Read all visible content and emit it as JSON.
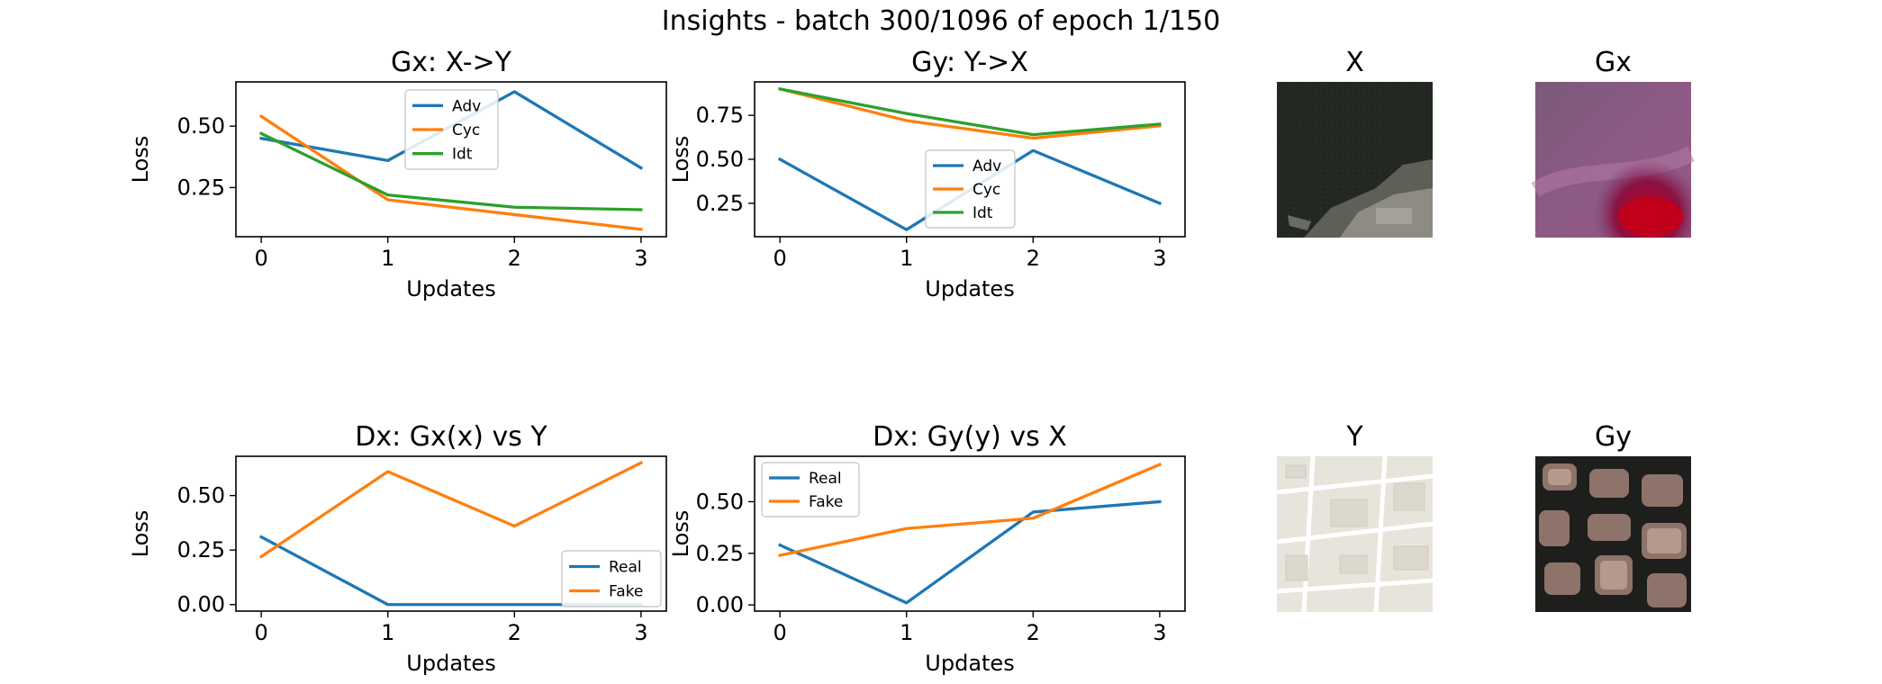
{
  "figure": {
    "title": "Insights - batch 300/1096 of epoch 1/150"
  },
  "colors": {
    "blue": "#1f77b4",
    "orange": "#ff7f0e",
    "green": "#2ca02c"
  },
  "chart_data": [
    {
      "type": "line",
      "title": "Gx: X->Y",
      "xlabel": "Updates",
      "ylabel": "Loss",
      "x": [
        0,
        1,
        2,
        3
      ],
      "xlim": [
        -0.2,
        3.2
      ],
      "ylim": [
        0.05,
        0.68
      ],
      "yticks": [
        0.25,
        0.5
      ],
      "ytick_labels": [
        "0.25",
        "0.50"
      ],
      "legend": "top-center",
      "series": [
        {
          "name": "Adv",
          "color": "#1f77b4",
          "values": [
            0.45,
            0.36,
            0.64,
            0.33
          ]
        },
        {
          "name": "Cyc",
          "color": "#ff7f0e",
          "values": [
            0.54,
            0.2,
            0.14,
            0.08
          ]
        },
        {
          "name": "Idt",
          "color": "#2ca02c",
          "values": [
            0.47,
            0.22,
            0.17,
            0.16
          ]
        }
      ]
    },
    {
      "type": "line",
      "title": "Gy: Y->X",
      "xlabel": "Updates",
      "ylabel": "Loss",
      "x": [
        0,
        1,
        2,
        3
      ],
      "xlim": [
        -0.2,
        3.2
      ],
      "ylim": [
        0.06,
        0.94
      ],
      "yticks": [
        0.25,
        0.5,
        0.75
      ],
      "ytick_labels": [
        "0.25",
        "0.50",
        "0.75"
      ],
      "legend": "lower-center",
      "series": [
        {
          "name": "Adv",
          "color": "#1f77b4",
          "values": [
            0.5,
            0.1,
            0.55,
            0.25
          ]
        },
        {
          "name": "Cyc",
          "color": "#ff7f0e",
          "values": [
            0.9,
            0.72,
            0.62,
            0.69
          ]
        },
        {
          "name": "Idt",
          "color": "#2ca02c",
          "values": [
            0.9,
            0.76,
            0.64,
            0.7
          ]
        }
      ]
    },
    {
      "type": "line",
      "title": "Dx: Gx(x) vs Y",
      "xlabel": "Updates",
      "ylabel": "Loss",
      "x": [
        0,
        1,
        2,
        3
      ],
      "xlim": [
        -0.2,
        3.2
      ],
      "ylim": [
        -0.03,
        0.68
      ],
      "yticks": [
        0.0,
        0.25,
        0.5
      ],
      "ytick_labels": [
        "0.00",
        "0.25",
        "0.50"
      ],
      "legend": "lower-right",
      "series": [
        {
          "name": "Real",
          "color": "#1f77b4",
          "values": [
            0.31,
            0.0,
            0.0,
            0.0
          ]
        },
        {
          "name": "Fake",
          "color": "#ff7f0e",
          "values": [
            0.22,
            0.61,
            0.36,
            0.65
          ]
        }
      ]
    },
    {
      "type": "line",
      "title": "Dx: Gy(y) vs X",
      "xlabel": "Updates",
      "ylabel": "Loss",
      "x": [
        0,
        1,
        2,
        3
      ],
      "xlim": [
        -0.2,
        3.2
      ],
      "ylim": [
        -0.03,
        0.72
      ],
      "yticks": [
        0.0,
        0.25,
        0.5
      ],
      "ytick_labels": [
        "0.00",
        "0.25",
        "0.50"
      ],
      "legend": "top-left",
      "series": [
        {
          "name": "Real",
          "color": "#1f77b4",
          "values": [
            0.29,
            0.01,
            0.45,
            0.5
          ]
        },
        {
          "name": "Fake",
          "color": "#ff7f0e",
          "values": [
            0.24,
            0.37,
            0.42,
            0.68
          ]
        }
      ]
    }
  ],
  "images": [
    {
      "title": "X",
      "icon": "satellite-photo-icon"
    },
    {
      "title": "Gx",
      "icon": "generated-map-icon"
    },
    {
      "title": "Y",
      "icon": "street-map-icon"
    },
    {
      "title": "Gy",
      "icon": "generated-satellite-icon"
    }
  ]
}
